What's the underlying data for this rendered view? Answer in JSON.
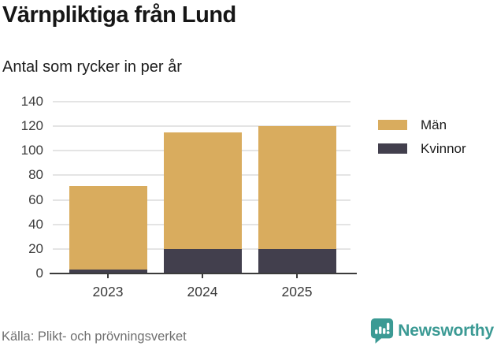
{
  "header": {
    "title": "Värnpliktiga från Lund",
    "subtitle": "Antal som rycker in per år"
  },
  "chart_data": {
    "type": "bar",
    "stacked": true,
    "title": "Värnpliktiga från Lund",
    "subtitle": "Antal som rycker in per år",
    "categories": [
      "2023",
      "2024",
      "2025"
    ],
    "series": [
      {
        "name": "Män",
        "color": "#d9ac5e",
        "values": [
          68,
          95,
          100
        ]
      },
      {
        "name": "Kvinnor",
        "color": "#423f4d",
        "values": [
          3,
          20,
          20
        ]
      }
    ],
    "stack_order_bottom_to_top": [
      "Kvinnor",
      "Män"
    ],
    "stack_totals": [
      71,
      115,
      120
    ],
    "xlabel": "",
    "ylabel": "",
    "ylim": [
      0,
      140
    ],
    "yticks": [
      0,
      20,
      40,
      60,
      80,
      100,
      120,
      140
    ],
    "grid": true,
    "legend_position": "right"
  },
  "legend": {
    "items": [
      {
        "label": "Män",
        "color": "#d9ac5e"
      },
      {
        "label": "Kvinnor",
        "color": "#423f4d"
      }
    ]
  },
  "footer": {
    "source": "Källa: Plikt- och prövningsverket",
    "brand": "Newsworthy"
  },
  "colors": {
    "men": "#d9ac5e",
    "women": "#423f4d",
    "gridline": "#e4e4e4",
    "axis": "#3b3b3b",
    "brand_teal": "#3b9a94"
  }
}
